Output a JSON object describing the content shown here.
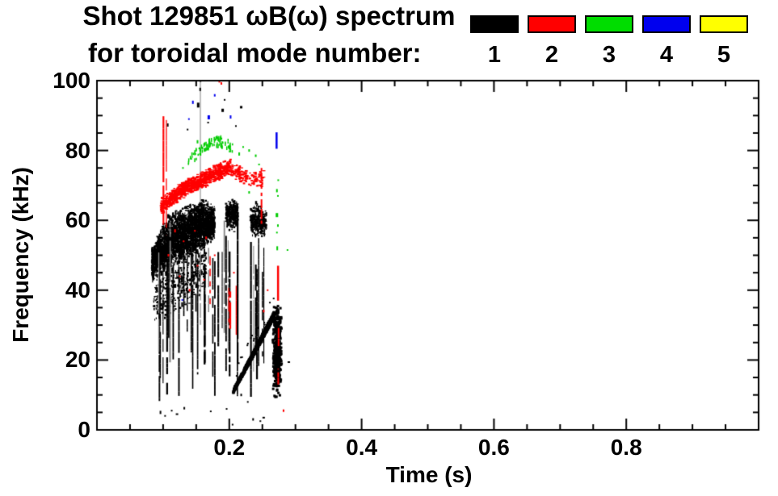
{
  "chart_data": {
    "type": "scatter",
    "title_line1": "Shot 129851 ωB(ω) spectrum",
    "title_line2": "for toroidal mode number:",
    "xlabel": "Time (s)",
    "ylabel": "Frequency (kHz)",
    "xlim": [
      0.0,
      1.0
    ],
    "ylim": [
      0,
      100
    ],
    "x_major_ticks": [
      0.2,
      0.4,
      0.6,
      0.8
    ],
    "x_tick_labels": [
      "0.2",
      "0.4",
      "0.6",
      "0.8"
    ],
    "x_minor_step": 0.05,
    "y_major_ticks": [
      0,
      20,
      40,
      60,
      80,
      100
    ],
    "y_tick_labels": [
      "0",
      "20",
      "40",
      "60",
      "80",
      "100"
    ],
    "y_minor_step": 5,
    "grid": false,
    "legend_position": "top-right",
    "legend": [
      {
        "mode": "1",
        "color": "#000000"
      },
      {
        "mode": "2",
        "color": "#ff0000"
      },
      {
        "mode": "3",
        "color": "#00dd00"
      },
      {
        "mode": "4",
        "color": "#0000ee"
      },
      {
        "mode": "5",
        "color": "#ffff00"
      }
    ],
    "series": [
      {
        "name": "toroidal mode n=1",
        "color": "#000000",
        "clusters": [
          {
            "kind": "vline",
            "t": 0.1563,
            "f0": 55,
            "f1": 100.8,
            "w": 1.2,
            "color": "#999999"
          },
          {
            "kind": "blob",
            "n": 3200,
            "breaks": [
              [
                0.083,
                42,
                52
              ],
              [
                0.095,
                44,
                58
              ],
              [
                0.11,
                46,
                62
              ],
              [
                0.13,
                48,
                64
              ],
              [
                0.15,
                50,
                66
              ],
              [
                0.165,
                52,
                66
              ],
              [
                0.178,
                54,
                64
              ]
            ]
          },
          {
            "kind": "blob",
            "n": 650,
            "sparse": true,
            "breaks": [
              [
                0.085,
                30,
                44
              ],
              [
                0.11,
                32,
                48
              ],
              [
                0.14,
                35,
                50
              ],
              [
                0.165,
                40,
                54
              ]
            ]
          },
          {
            "kind": "vstreaks",
            "count": 30,
            "t0": 0.088,
            "t1": 0.215,
            "ftop0": 42,
            "ftop1": 62,
            "fbot0": 8,
            "fbot1": 34,
            "grayp": 0.3
          },
          {
            "kind": "vstreaks",
            "count": 7,
            "t0": 0.218,
            "t1": 0.255,
            "ftop0": 45,
            "ftop1": 55,
            "fbot0": 3,
            "fbot1": 22,
            "grayp": 0.45
          },
          {
            "kind": "blob",
            "n": 280,
            "breaks": [
              [
                0.195,
                58,
                66
              ],
              [
                0.205,
                56,
                67
              ],
              [
                0.213,
                58,
                65
              ]
            ]
          },
          {
            "kind": "blob",
            "n": 330,
            "breaks": [
              [
                0.232,
                56,
                64
              ],
              [
                0.243,
                54,
                66
              ],
              [
                0.256,
                56,
                63
              ]
            ]
          },
          {
            "kind": "chirp",
            "t0": 0.206,
            "f0": 11,
            "t1": 0.268,
            "f1": 33,
            "th0": 2,
            "th1": 6,
            "n": 700,
            "dashes": 16
          },
          {
            "kind": "vblob",
            "t": 0.2725,
            "tw": 0.0035,
            "f0": 9,
            "f1": 36,
            "n": 430
          },
          {
            "kind": "dots",
            "pts": [
              [
                0.153,
                93,
                3,
                6
              ],
              [
                0.156,
                97.5,
                2,
                4
              ],
              [
                0.1565,
                100,
                2,
                3
              ],
              [
                0.19,
                91.5,
                3,
                4
              ],
              [
                0.193,
                94.5,
                2,
                2
              ],
              [
                0.218,
                92.4,
                3,
                3
              ],
              [
                0.107,
                87.3,
                2,
                4
              ],
              [
                0.137,
                86,
                2,
                2
              ],
              [
                0.168,
                88,
                2,
                2
              ],
              [
                0.21,
                87,
                2,
                2
              ]
            ]
          },
          {
            "kind": "dots",
            "pts": [
              [
                0.096,
                5,
                2,
                4
              ],
              [
                0.103,
                4,
                2,
                2
              ],
              [
                0.113,
                5.5,
                2,
                2
              ],
              [
                0.121,
                4.5,
                3,
                2
              ],
              [
                0.132,
                6.2,
                2,
                3
              ],
              [
                0.172,
                5.3,
                2,
                2
              ],
              [
                0.196,
                6,
                2,
                2
              ],
              [
                0.236,
                3,
                2,
                3
              ],
              [
                0.247,
                2.5,
                2,
                2
              ],
              [
                0.252,
                3.5,
                3,
                2
              ],
              [
                0.29,
                19.4,
                3,
                2
              ],
              [
                0.205,
                1.5,
                2,
                2
              ],
              [
                0.218,
                10,
                2,
                3
              ],
              [
                0.228,
                8,
                2,
                2
              ]
            ]
          }
        ]
      },
      {
        "name": "toroidal mode n=2",
        "color": "#ff0000",
        "clusters": [
          {
            "kind": "band",
            "n": 950,
            "spread": 2.6,
            "breaks": [
              [
                0.097,
                64
              ],
              [
                0.11,
                66
              ],
              [
                0.125,
                68
              ],
              [
                0.14,
                70
              ],
              [
                0.155,
                71
              ],
              [
                0.17,
                72.5
              ],
              [
                0.185,
                74
              ],
              [
                0.2,
                75
              ]
            ]
          },
          {
            "kind": "band",
            "n": 150,
            "spread": 2.8,
            "breaks": [
              [
                0.2,
                75
              ],
              [
                0.22,
                73
              ],
              [
                0.24,
                72
              ],
              [
                0.253,
                72
              ]
            ]
          },
          {
            "kind": "vstreaks",
            "count": 2,
            "t0": 0.099,
            "t1": 0.105,
            "ftop0": 88,
            "ftop1": 92,
            "fbot0": 55,
            "fbot1": 62,
            "grayp": 0
          },
          {
            "kind": "dots",
            "pts": [
              [
                0.185,
                99.8,
                2,
                3
              ],
              [
                0.188,
                99.2,
                2,
                3
              ],
              [
                0.1905,
                100.3,
                2,
                2
              ]
            ]
          },
          {
            "kind": "vline",
            "t": 0.2487,
            "f0": 59,
            "f1": 75,
            "w": 2,
            "dash": true
          },
          {
            "kind": "vstreaks",
            "count": 3,
            "t0": 0.199,
            "t1": 0.211,
            "ftop0": 37,
            "ftop1": 42,
            "fbot0": 27,
            "fbot1": 33,
            "grayp": 0
          },
          {
            "kind": "vline",
            "t": 0.171,
            "f0": 36,
            "f1": 50,
            "w": 1.5,
            "dash": true
          },
          {
            "kind": "vline",
            "t": 0.2737,
            "f0": 37,
            "f1": 47,
            "w": 2.5
          },
          {
            "kind": "vline",
            "t": 0.2745,
            "f0": 24,
            "f1": 29.5,
            "w": 2,
            "dash": true
          },
          {
            "kind": "vline",
            "t": 0.274,
            "f0": 13,
            "f1": 17.5,
            "w": 2,
            "dash": true
          },
          {
            "kind": "dots",
            "pts": [
              [
                0.282,
                5.5,
                2,
                3
              ],
              [
                0.252,
                34,
                2,
                3
              ],
              [
                0.258,
                40,
                2,
                2
              ],
              [
                0.207,
                45,
                2,
                2
              ],
              [
                0.165,
                55,
                2,
                3
              ],
              [
                0.148,
                57,
                2,
                2
              ],
              [
                0.118,
                57,
                2,
                4
              ],
              [
                0.131,
                54,
                2,
                2
              ],
              [
                0.108,
                50,
                2,
                3
              ],
              [
                0.125,
                44,
                2,
                2
              ],
              [
                0.14,
                40,
                2,
                3
              ],
              [
                0.152,
                47,
                2,
                2
              ],
              [
                0.162,
                43,
                2,
                2
              ],
              [
                0.178,
                50,
                2,
                2
              ]
            ]
          }
        ]
      },
      {
        "name": "toroidal mode n=3",
        "color": "#00cc00",
        "clusters": [
          {
            "kind": "band",
            "n": 100,
            "spread": 1.8,
            "dashy": true,
            "breaks": [
              [
                0.138,
                77
              ],
              [
                0.152,
                79.5
              ],
              [
                0.165,
                81
              ],
              [
                0.18,
                82.5
              ],
              [
                0.195,
                82
              ],
              [
                0.205,
                80.5
              ]
            ]
          },
          {
            "kind": "dots",
            "pts": [
              [
                0.152,
                82.5,
                2,
                4
              ],
              [
                0.148,
                79,
                2,
                3
              ],
              [
                0.215,
                79,
                2,
                4
              ],
              [
                0.221,
                81,
                2,
                2
              ],
              [
                0.23,
                80,
                2,
                3
              ],
              [
                0.24,
                78.5,
                2,
                3
              ],
              [
                0.13,
                75,
                2,
                2
              ],
              [
                0.23,
                68,
                2,
                3
              ],
              [
                0.245,
                76,
                2,
                2
              ]
            ]
          },
          {
            "kind": "dots",
            "pts": [
              [
                0.272,
                68.5,
                2,
                4
              ],
              [
                0.2735,
                67,
                2,
                2
              ],
              [
                0.272,
                61.5,
                3,
                5
              ],
              [
                0.2735,
                58.5,
                2,
                3
              ],
              [
                0.272,
                56.5,
                2,
                2
              ],
              [
                0.2725,
                52,
                2,
                5
              ],
              [
                0.288,
                51.5,
                2,
                2
              ],
              [
                0.274,
                71.5,
                2,
                2
              ]
            ]
          }
        ]
      },
      {
        "name": "toroidal mode n=4",
        "color": "#0000ee",
        "clusters": [
          {
            "kind": "dots",
            "pts": [
              [
                0.145,
                93.8,
                2,
                4
              ],
              [
                0.178,
                95.8,
                2,
                3
              ],
              [
                0.169,
                89.5,
                3,
                5
              ],
              [
                0.202,
                89.6,
                2,
                4
              ],
              [
                0.129,
                37.2,
                2,
                2
              ],
              [
                0.139,
                89,
                2,
                2
              ]
            ]
          },
          {
            "kind": "vline",
            "t": 0.2715,
            "f0": 80.5,
            "f1": 85.2,
            "w": 2.5
          }
        ]
      },
      {
        "name": "toroidal mode n=5",
        "color": "#ffff00",
        "clusters": []
      }
    ]
  }
}
